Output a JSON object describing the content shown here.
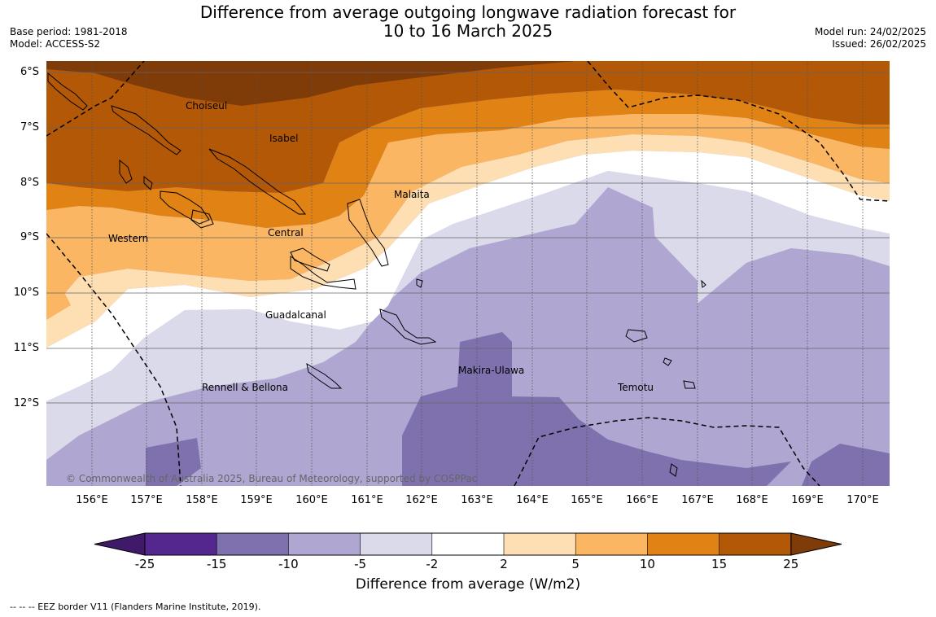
{
  "title": {
    "line1": "Difference from average outgoing longwave radiation forecast for",
    "line2": "10 to 16 March 2025"
  },
  "meta_left": {
    "base_period": "Base period: 1981-2018",
    "model": "Model: ACCESS-S2"
  },
  "meta_right": {
    "model_run": "Model run: 24/02/2025",
    "issued": "Issued: 26/02/2025"
  },
  "map": {
    "lat_labels": [
      "6°S",
      "7°S",
      "8°S",
      "9°S",
      "10°S",
      "11°S",
      "12°S"
    ],
    "lon_labels": [
      "156°E",
      "157°E",
      "158°E",
      "159°E",
      "160°E",
      "161°E",
      "162°E",
      "163°E",
      "164°E",
      "165°E",
      "166°E",
      "167°E",
      "168°E",
      "169°E",
      "170°E"
    ],
    "regions": [
      "Choiseul",
      "Isabel",
      "Malaita",
      "Western",
      "Central",
      "Guadalcanal",
      "Makira-Ulawa",
      "Rennell & Bellona",
      "Temotu"
    ],
    "copyright": "© Commonwealth of Australia 2025, Bureau of Meteorology, supported by COSPPac"
  },
  "colorbar": {
    "colors": [
      "#3f1a6b",
      "#54278f",
      "#7f71ad",
      "#afa7d2",
      "#dadaeb",
      "#ffffff",
      "#fedfb3",
      "#fab662",
      "#e08214",
      "#b35807",
      "#7f3b08"
    ],
    "ticks": [
      "-25",
      "-15",
      "-10",
      "-5",
      "-2",
      "2",
      "5",
      "10",
      "15",
      "25"
    ],
    "label": "Difference from average (W/m2)"
  },
  "footer": {
    "legend": "--  --  -- EEZ border V11 (Flanders Marine Institute, 2019)."
  }
}
